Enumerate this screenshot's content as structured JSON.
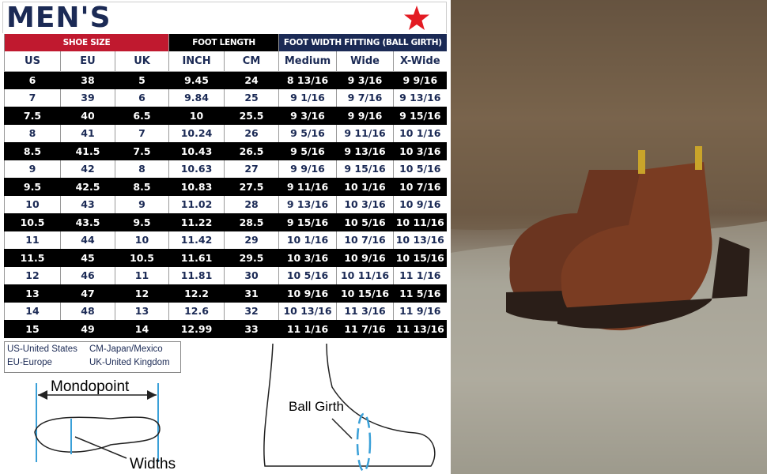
{
  "title": "MEN'S",
  "colors": {
    "navy": "#1b2a55",
    "red": "#c0192f",
    "black": "#000000",
    "star": "#e31b23"
  },
  "groups": [
    "SHOE SIZE",
    "FOOT LENGTH",
    "FOOT WIDTH FITTING (BALL GIRTH)"
  ],
  "columns": [
    "US",
    "EU",
    "UK",
    "INCH",
    "CM",
    "Medium",
    "Wide",
    "X-Wide"
  ],
  "rows": [
    [
      "6",
      "38",
      "5",
      "9.45",
      "24",
      "8 13/16",
      "9 3/16",
      "9 9/16"
    ],
    [
      "7",
      "39",
      "6",
      "9.84",
      "25",
      "9 1/16",
      "9 7/16",
      "9 13/16"
    ],
    [
      "7.5",
      "40",
      "6.5",
      "10",
      "25.5",
      "9 3/16",
      "9 9/16",
      "9 15/16"
    ],
    [
      "8",
      "41",
      "7",
      "10.24",
      "26",
      "9 5/16",
      "9 11/16",
      "10 1/16"
    ],
    [
      "8.5",
      "41.5",
      "7.5",
      "10.43",
      "26.5",
      "9 5/16",
      "9 13/16",
      "10 3/16"
    ],
    [
      "9",
      "42",
      "8",
      "10.63",
      "27",
      "9 9/16",
      "9 15/16",
      "10 5/16"
    ],
    [
      "9.5",
      "42.5",
      "8.5",
      "10.83",
      "27.5",
      "9 11/16",
      "10 1/16",
      "10 7/16"
    ],
    [
      "10",
      "43",
      "9",
      "11.02",
      "28",
      "9 13/16",
      "10 3/16",
      "10 9/16"
    ],
    [
      "10.5",
      "43.5",
      "9.5",
      "11.22",
      "28.5",
      "9 15/16",
      "10 5/16",
      "10 11/16"
    ],
    [
      "11",
      "44",
      "10",
      "11.42",
      "29",
      "10 1/16",
      "10 7/16",
      "10 13/16"
    ],
    [
      "11.5",
      "45",
      "10.5",
      "11.61",
      "29.5",
      "10 3/16",
      "10 9/16",
      "10 15/16"
    ],
    [
      "12",
      "46",
      "11",
      "11.81",
      "30",
      "10 5/16",
      "10 11/16",
      "11 1/16"
    ],
    [
      "13",
      "47",
      "12",
      "12.2",
      "31",
      "10 9/16",
      "10 15/16",
      "11 5/16"
    ],
    [
      "14",
      "48",
      "13",
      "12.6",
      "32",
      "10 13/16",
      "11 3/16",
      "11 9/16"
    ],
    [
      "15",
      "49",
      "14",
      "12.99",
      "33",
      "11 1/16",
      "11 7/16",
      "11 13/16"
    ]
  ],
  "legend": [
    "US-United States",
    "CM-Japan/Mexico",
    "EU-Europe",
    "UK-United Kingdom"
  ],
  "diagram": {
    "mondopoint": "Mondopoint",
    "widths": "Widths",
    "ball_girth": "Ball Girth"
  }
}
